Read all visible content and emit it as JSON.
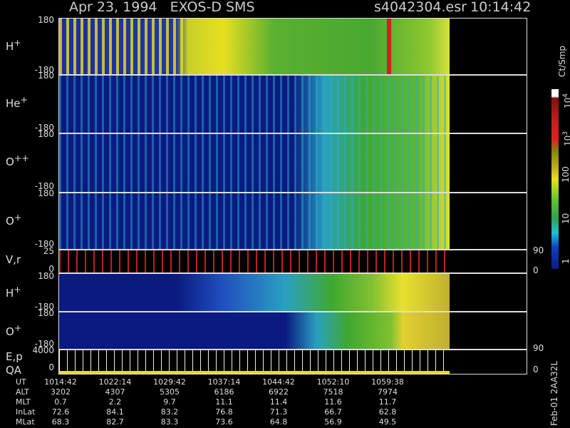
{
  "header": {
    "title": "Apr 23, 1994   EXOS-D SMS",
    "file": "s4042304.esr",
    "time": "10:14:42"
  },
  "panels": [
    {
      "name": "H",
      "charge": "+",
      "ticks": [
        180,
        -180
      ]
    },
    {
      "name": "He",
      "charge": "+",
      "ticks": [
        180,
        -180
      ]
    },
    {
      "name": "O",
      "charge": "++",
      "ticks": [
        180,
        -180
      ]
    },
    {
      "name": "O",
      "charge": "+",
      "ticks": [
        180,
        -180
      ]
    },
    {
      "name": "V,r",
      "ticks": [
        25,
        0
      ],
      "right_ticks": [
        90,
        0
      ]
    },
    {
      "name": "H",
      "charge": "+",
      "ticks": [
        180,
        -180
      ]
    },
    {
      "name": "O",
      "charge": "+",
      "ticks": [
        180,
        -180
      ]
    },
    {
      "name": "E,p",
      "name2": "QA",
      "ticks": [
        4000,
        0
      ],
      "right_ticks": [
        90,
        0
      ]
    }
  ],
  "colorbar": {
    "label": "Ct/Smp",
    "ticks": [
      {
        "base": "10",
        "exp": "4"
      },
      {
        "base": "10",
        "exp": "3"
      },
      "100",
      "10",
      "1"
    ]
  },
  "footer": {
    "rows": [
      {
        "label": "UT",
        "values": [
          "1014:42",
          "1022:14",
          "1029:42",
          "1037:14",
          "1044:42",
          "1052:10",
          "1059:38"
        ]
      },
      {
        "label": "ALT",
        "values": [
          3202,
          4307,
          5305,
          6186,
          6922,
          7518,
          7974
        ]
      },
      {
        "label": "MLT",
        "values": [
          0.7,
          2.2,
          9.7,
          11.1,
          11.4,
          11.6,
          11.7
        ]
      },
      {
        "label": "InLat",
        "values": [
          72.6,
          84.1,
          83.2,
          76.8,
          71.3,
          66.7,
          62.8
        ]
      },
      {
        "label": "MLat",
        "values": [
          68.3,
          82.7,
          83.3,
          73.6,
          64.8,
          56.9,
          49.5
        ]
      }
    ]
  },
  "stamp": "Feb-01 2AA32L"
}
